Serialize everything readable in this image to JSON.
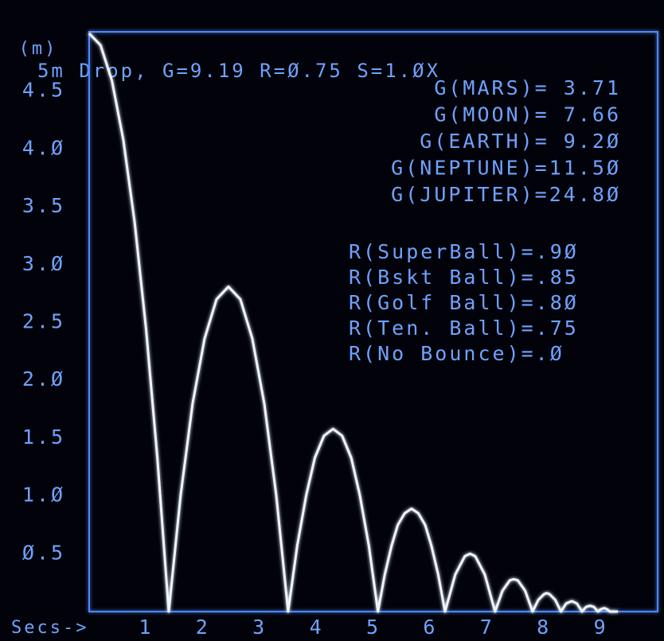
{
  "chart_data": {
    "type": "line",
    "title": "5m Drop, G=9.19  R=Ø.75  S=1.ØX",
    "x_label": "Secs->",
    "y_label": "(m)",
    "gravity_notes": [
      "G(MARS)=  3.71",
      "G(MOON)=  7.66",
      "G(EARTH)=  9.2Ø",
      "G(NEPTUNE)=11.5Ø",
      "G(JUPITER)=24.8Ø"
    ],
    "bounce_notes": [
      "R(SuperBall)=.9Ø",
      "R(Bskt Ball)=.85",
      "R(Golf Ball)=.8Ø",
      "R(Ten. Ball)=.75",
      "R(No Bounce)=.Ø"
    ],
    "xlim": [
      0,
      10
    ],
    "ylim": [
      0,
      5
    ],
    "xticks": [
      1,
      2,
      3,
      4,
      5,
      6,
      7,
      8,
      9
    ],
    "yticks": [
      {
        "value": 0.5,
        "label": "Ø.5"
      },
      {
        "value": 1,
        "label": "1.Ø"
      },
      {
        "value": 1.5,
        "label": "1.5"
      },
      {
        "value": 2,
        "label": "2.Ø"
      },
      {
        "value": 2.5,
        "label": "2.5"
      },
      {
        "value": 3,
        "label": "3.Ø"
      },
      {
        "value": 3.5,
        "label": "3.5"
      },
      {
        "value": 4,
        "label": "4.Ø"
      },
      {
        "value": 4.5,
        "label": "4.5"
      }
    ],
    "grid": true,
    "color": "#eef4ff",
    "axis_color": "#4f86ff",
    "x": [
      0,
      0.2,
      0.4,
      0.6,
      0.8,
      1.0,
      1.2,
      1.4,
      1.61,
      1.82,
      2.03,
      2.24,
      2.45,
      2.66,
      2.87,
      3.08,
      3.29,
      3.5,
      3.66,
      3.82,
      3.97,
      4.13,
      4.29,
      4.45,
      4.61,
      4.76,
      4.92,
      5.08,
      5.2,
      5.32,
      5.43,
      5.55,
      5.67,
      5.79,
      5.91,
      6.02,
      6.14,
      6.26,
      6.44,
      6.61,
      6.7,
      6.79,
      6.96,
      7.14,
      7.27,
      7.4,
      7.47,
      7.54,
      7.67,
      7.8,
      7.9,
      8.0,
      8.05,
      8.1,
      8.2,
      8.3,
      8.39,
      8.49,
      8.58,
      8.67,
      8.74,
      8.81,
      8.88,
      8.95,
      9.0,
      9.06,
      9.11,
      9.16,
      9.3
    ],
    "values": [
      5,
      4.898,
      4.592,
      4.082,
      3.367,
      2.449,
      1.327,
      0,
      1.01,
      1.8,
      2.36,
      2.7,
      2.81,
      2.7,
      2.36,
      1.8,
      1.01,
      0,
      0.57,
      1.01,
      1.33,
      1.52,
      1.58,
      1.52,
      1.33,
      1.01,
      0.57,
      0,
      0.32,
      0.57,
      0.75,
      0.85,
      0.89,
      0.85,
      0.75,
      0.57,
      0.32,
      0,
      0.32,
      0.48,
      0.5,
      0.48,
      0.32,
      0,
      0.18,
      0.27,
      0.28,
      0.27,
      0.18,
      0,
      0.1,
      0.15,
      0.16,
      0.15,
      0.1,
      0,
      0.07,
      0.09,
      0.07,
      0,
      0.04,
      0.05,
      0.04,
      0,
      0.02,
      0.03,
      0.02,
      0,
      0
    ]
  }
}
